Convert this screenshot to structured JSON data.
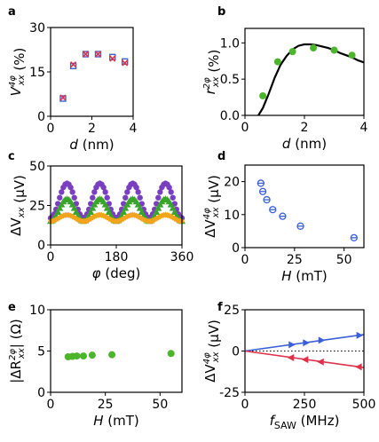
{
  "chart_data": [
    {
      "id": "a",
      "panel_label": "a",
      "type": "scatter",
      "xlabel_var": "d",
      "xlabel_unit": "(nm)",
      "ylabel_main": "V",
      "ylabel_sub": "xx",
      "ylabel_sup": "4φ",
      "ylabel_unit": "(%)",
      "xlim": [
        0,
        4
      ],
      "ylim": [
        0,
        30
      ],
      "xticks": [
        "0",
        "2",
        "4"
      ],
      "yticks": [
        "0",
        "15",
        "30"
      ],
      "series": [
        {
          "marker": "square-open",
          "color": "#3a5fd8",
          "x": [
            0.6,
            1.1,
            1.7,
            2.3,
            3.0,
            3.6
          ],
          "y": [
            6.0,
            17.0,
            21.0,
            21.0,
            20.0,
            18.5
          ]
        },
        {
          "marker": "cross",
          "color": "#e0304a",
          "x": [
            0.6,
            1.1,
            1.7,
            2.3,
            3.0,
            3.6
          ],
          "y": [
            6.3,
            17.5,
            21.0,
            21.0,
            19.5,
            18.0
          ]
        }
      ]
    },
    {
      "id": "b",
      "panel_label": "b",
      "type": "scatter",
      "xlabel_var": "d",
      "xlabel_unit": "(nm)",
      "ylabel_main": "r",
      "ylabel_sub": "xx",
      "ylabel_sup": "2φ",
      "ylabel_unit": "(%)",
      "xlim": [
        0,
        4
      ],
      "ylim": [
        0,
        1.2
      ],
      "xticks": [
        "0",
        "2",
        "4"
      ],
      "yticks": [
        "0.0",
        "0.5",
        "1.0"
      ],
      "ytick_values": [
        0,
        0.5,
        1.0
      ],
      "series": [
        {
          "marker": "dot",
          "color": "#4bb52b",
          "x": [
            0.6,
            1.1,
            1.6,
            2.3,
            3.0,
            3.6
          ],
          "y": [
            0.27,
            0.74,
            0.88,
            0.93,
            0.9,
            0.83
          ]
        }
      ],
      "fit_line": {
        "color": "#000000",
        "x": [
          0.45,
          0.6,
          0.8,
          1.0,
          1.2,
          1.4,
          1.6,
          1.8,
          2.0,
          2.2,
          2.4,
          2.6,
          2.8,
          3.0,
          3.2,
          3.4,
          3.6,
          3.8,
          4.0
        ],
        "y": [
          0.0,
          0.1,
          0.3,
          0.52,
          0.7,
          0.82,
          0.91,
          0.96,
          0.98,
          0.98,
          0.97,
          0.95,
          0.93,
          0.9,
          0.86,
          0.83,
          0.8,
          0.76,
          0.73
        ]
      }
    },
    {
      "id": "c",
      "panel_label": "c",
      "type": "scatter",
      "xlabel_var": "φ",
      "xlabel_unit": "(deg)",
      "ylabel_main": "ΔV",
      "ylabel_sub": "xx",
      "ylabel_unit": "(μV)",
      "xlim": [
        0,
        360
      ],
      "ylim": [
        0,
        50
      ],
      "xticks": [
        "0",
        "180",
        "360"
      ],
      "yticks": [
        "0",
        "25",
        "50"
      ],
      "series": [
        {
          "marker": "dot",
          "color": "#7a3fc0",
          "baseline": 17,
          "amplitude": 22
        },
        {
          "marker": "triangle",
          "color": "#3aa52b",
          "baseline": 15,
          "amplitude": 14
        },
        {
          "marker": "diamond",
          "color": "#f2a41c",
          "baseline": 15,
          "amplitude": 4
        }
      ]
    },
    {
      "id": "d",
      "panel_label": "d",
      "type": "scatter",
      "xlabel_var": "H",
      "xlabel_unit": "(mT)",
      "ylabel_main": "ΔV",
      "ylabel_sub": "xx",
      "ylabel_sup": "4φ",
      "ylabel_unit": "(μV)",
      "xlim": [
        0,
        60
      ],
      "ylim": [
        0,
        25
      ],
      "xticks": [
        "0",
        "25",
        "50"
      ],
      "yticks": [
        "0",
        "10",
        "20"
      ],
      "series": [
        {
          "marker": "circle-open-bar",
          "color": "#3a5fd8",
          "x": [
            8,
            9,
            11,
            14,
            19,
            28,
            55
          ],
          "y": [
            19.5,
            17.0,
            14.5,
            11.5,
            9.5,
            6.5,
            3.0
          ]
        }
      ]
    },
    {
      "id": "e",
      "panel_label": "e",
      "type": "scatter",
      "xlabel_var": "H",
      "xlabel_unit": "(mT)",
      "ylabel_main": "|ΔR",
      "ylabel_sub": "xx",
      "ylabel_sup": "2φ",
      "ylabel_end": "|",
      "ylabel_unit": "(Ω)",
      "xlim": [
        0,
        60
      ],
      "ylim": [
        0,
        10
      ],
      "xticks": [
        "0",
        "25",
        "50"
      ],
      "yticks": [
        "0",
        "5",
        "10"
      ],
      "series": [
        {
          "marker": "dot",
          "color": "#4bb52b",
          "x": [
            8,
            10,
            12,
            15,
            19,
            28,
            55
          ],
          "y": [
            4.3,
            4.35,
            4.4,
            4.4,
            4.5,
            4.55,
            4.7
          ]
        }
      ]
    },
    {
      "id": "f",
      "panel_label": "f",
      "type": "scatter",
      "xlabel_var": "f",
      "xlabel_sub": "SAW",
      "xlabel_unit": "(MHz)",
      "ylabel_main": "ΔV",
      "ylabel_sub": "xx",
      "ylabel_sup": "4φ",
      "ylabel_unit": "(μV)",
      "xlim": [
        0,
        500
      ],
      "ylim": [
        -25,
        25
      ],
      "xticks": [
        "0",
        "250",
        "500"
      ],
      "yticks": [
        "-25",
        "0",
        "25"
      ],
      "series": [
        {
          "marker": "triangle-right",
          "color": "#3a5fd8",
          "x": [
            195,
            255,
            320,
            480
          ],
          "y": [
            3.8,
            5.0,
            6.5,
            9.5
          ],
          "line": {
            "x": [
              0,
              500
            ],
            "y": [
              0,
              10
            ]
          }
        },
        {
          "marker": "triangle-left",
          "color": "#e0304a",
          "x": [
            195,
            255,
            320,
            480
          ],
          "y": [
            -4.0,
            -5.2,
            -6.6,
            -9.6
          ],
          "line": {
            "x": [
              0,
              500
            ],
            "y": [
              0,
              -10
            ]
          }
        }
      ],
      "reference_line": {
        "y": 0,
        "style": "dotted"
      }
    }
  ]
}
